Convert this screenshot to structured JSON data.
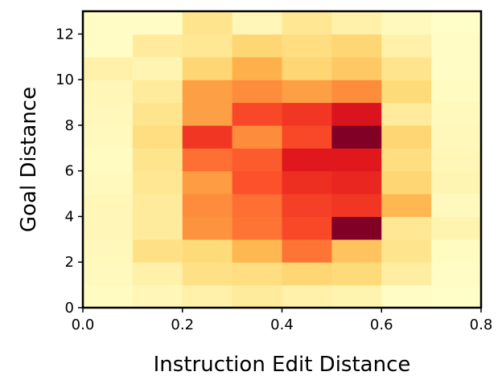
{
  "chart_data": {
    "type": "heatmap",
    "xlabel": "Instruction Edit Distance",
    "ylabel": "Goal Distance",
    "xlim": [
      0.0,
      0.8
    ],
    "ylim": [
      0,
      13
    ],
    "x_bin_edges": [
      0.0,
      0.1,
      0.2,
      0.3,
      0.4,
      0.5,
      0.6,
      0.7,
      0.8
    ],
    "y_bin_edges": [
      0,
      1,
      2,
      3,
      4,
      5,
      6,
      7,
      8,
      9,
      10,
      11,
      12,
      13
    ],
    "x_ticks": [
      {
        "value": 0.0,
        "label": "0.0"
      },
      {
        "value": 0.2,
        "label": "0.2"
      },
      {
        "value": 0.4,
        "label": "0.4"
      },
      {
        "value": 0.6,
        "label": "0.6"
      },
      {
        "value": 0.8,
        "label": "0.8"
      }
    ],
    "y_ticks": [
      {
        "value": 0,
        "label": "0"
      },
      {
        "value": 2,
        "label": "2"
      },
      {
        "value": 4,
        "label": "4"
      },
      {
        "value": 6,
        "label": "6"
      },
      {
        "value": 8,
        "label": "8"
      },
      {
        "value": 10,
        "label": "10"
      },
      {
        "value": 12,
        "label": "12"
      }
    ],
    "colormap": "YlOrRd",
    "relative_density_rows_bottom_to_top": [
      [
        0.03,
        0.06,
        0.1,
        0.14,
        0.1,
        0.08,
        0.02,
        0.01
      ],
      [
        0.04,
        0.1,
        0.2,
        0.22,
        0.26,
        0.24,
        0.12,
        0.02
      ],
      [
        0.05,
        0.2,
        0.24,
        0.36,
        0.55,
        0.32,
        0.18,
        0.03
      ],
      [
        0.06,
        0.14,
        0.48,
        0.55,
        0.64,
        1.0,
        0.16,
        0.08
      ],
      [
        0.06,
        0.14,
        0.5,
        0.56,
        0.66,
        0.68,
        0.36,
        0.04
      ],
      [
        0.04,
        0.16,
        0.45,
        0.62,
        0.7,
        0.72,
        0.26,
        0.07
      ],
      [
        0.03,
        0.18,
        0.56,
        0.6,
        0.76,
        0.76,
        0.22,
        0.06
      ],
      [
        0.04,
        0.22,
        0.68,
        0.5,
        0.64,
        1.0,
        0.26,
        0.05
      ],
      [
        0.05,
        0.18,
        0.44,
        0.64,
        0.68,
        0.78,
        0.14,
        0.04
      ],
      [
        0.06,
        0.14,
        0.44,
        0.5,
        0.44,
        0.5,
        0.24,
        0.03
      ],
      [
        0.1,
        0.07,
        0.26,
        0.38,
        0.26,
        0.3,
        0.18,
        0.02
      ],
      [
        0.02,
        0.14,
        0.16,
        0.26,
        0.22,
        0.26,
        0.1,
        0.02
      ],
      [
        0.02,
        0.02,
        0.18,
        0.06,
        0.16,
        0.1,
        0.04,
        0.01
      ]
    ]
  }
}
